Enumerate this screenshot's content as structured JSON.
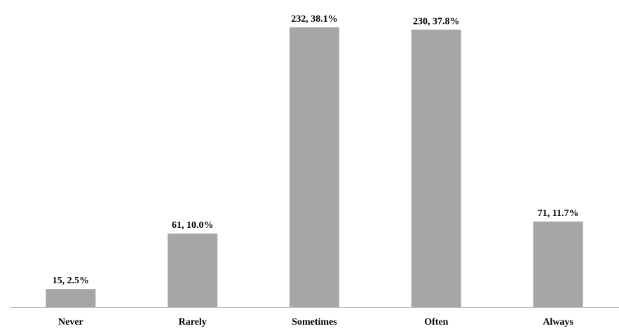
{
  "chart_data": {
    "type": "bar",
    "categories": [
      "Never",
      "Rarely",
      "Sometimes",
      "Often",
      "Always"
    ],
    "values": [
      15,
      61,
      232,
      230,
      71
    ],
    "data_labels": [
      "15, 2.5%",
      "61, 10.0%",
      "232, 38.1%",
      "230, 37.8%",
      "71, 11.7%"
    ],
    "title": "",
    "xlabel": "",
    "ylabel": "",
    "ylim": [
      0,
      250
    ],
    "grid": false,
    "legend": "none",
    "bar_color": "#a6a6a6",
    "axis_color": "#bfbfbf"
  }
}
